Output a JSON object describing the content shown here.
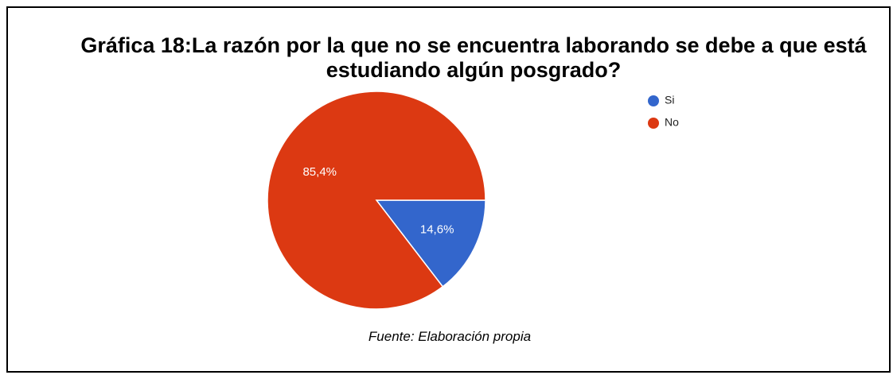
{
  "chart_data": {
    "type": "pie",
    "title": "Gráfica 18:La razón por la que no se encuentra laborando se debe a que está estudiando algún posgrado?",
    "categories": [
      "Si",
      "No"
    ],
    "values": [
      14.6,
      85.4
    ],
    "value_labels": [
      "14,6%",
      "85,4%"
    ],
    "colors": [
      "#3366cc",
      "#dc3912"
    ],
    "legend": "right",
    "source": "Fuente: Elaboración propia"
  }
}
